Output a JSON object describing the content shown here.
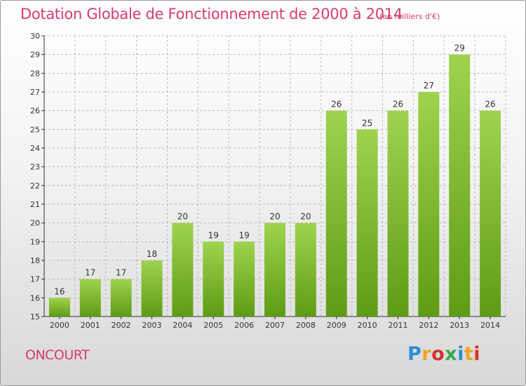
{
  "header": {
    "title": "Dotation Globale de Fonctionnement de 2000 à 2014",
    "unit": "(en milliers d'€)"
  },
  "footer": {
    "commune": "ONCOURT",
    "logo": "Proxiti",
    "logo_colors": [
      "#2f8ed6",
      "#f4a11d",
      "#d9322e",
      "#3aa64c",
      "#2f8ed6",
      "#f4a11d",
      "#d9322e"
    ]
  },
  "colors": {
    "bar_light": "#9fd34e",
    "bar_dark": "#5e9c14",
    "title": "#d83c6f",
    "grid": "#bbbbbb"
  },
  "chart_data": {
    "type": "bar",
    "title": "Dotation Globale de Fonctionnement de 2000 à 2014",
    "xlabel": "",
    "ylabel": "",
    "ylim": [
      15,
      30
    ],
    "yticks": [
      15,
      16,
      17,
      18,
      19,
      20,
      21,
      22,
      23,
      24,
      25,
      26,
      27,
      28,
      29,
      30
    ],
    "grid": true,
    "categories": [
      "2000",
      "2001",
      "2002",
      "2003",
      "2004",
      "2005",
      "2006",
      "2007",
      "2008",
      "2009",
      "2010",
      "2011",
      "2012",
      "2013",
      "2014"
    ],
    "values": [
      16,
      17,
      17,
      18,
      20,
      19,
      19,
      20,
      20,
      26,
      25,
      26,
      27,
      29,
      26
    ]
  }
}
